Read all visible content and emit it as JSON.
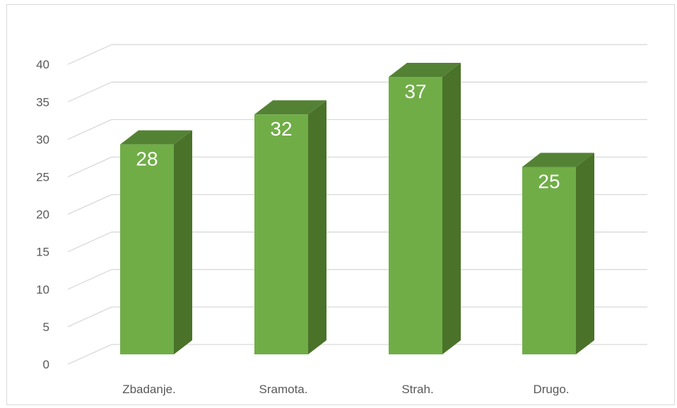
{
  "chart_data": {
    "type": "bar",
    "style": "3d-column",
    "categories": [
      "Zbadanje.",
      "Sramota.",
      "Strah.",
      "Drugo."
    ],
    "values": [
      28,
      32,
      37,
      25
    ],
    "data_labels": [
      "28",
      "32",
      "37",
      "25"
    ],
    "ylim": [
      0,
      40
    ],
    "yticks": [
      0,
      5,
      10,
      15,
      20,
      25,
      30,
      35,
      40
    ],
    "ytick_labels": [
      "0",
      "5",
      "10",
      "15",
      "20",
      "25",
      "30",
      "35",
      "40"
    ],
    "grid": true,
    "legend": "none",
    "colors": {
      "bar_front": "#70ad47",
      "bar_side": "#4a7229",
      "bar_top": "#548235",
      "grid": "#d9d9d9",
      "label_text": "#595959",
      "data_label_text": "#ffffff"
    }
  }
}
